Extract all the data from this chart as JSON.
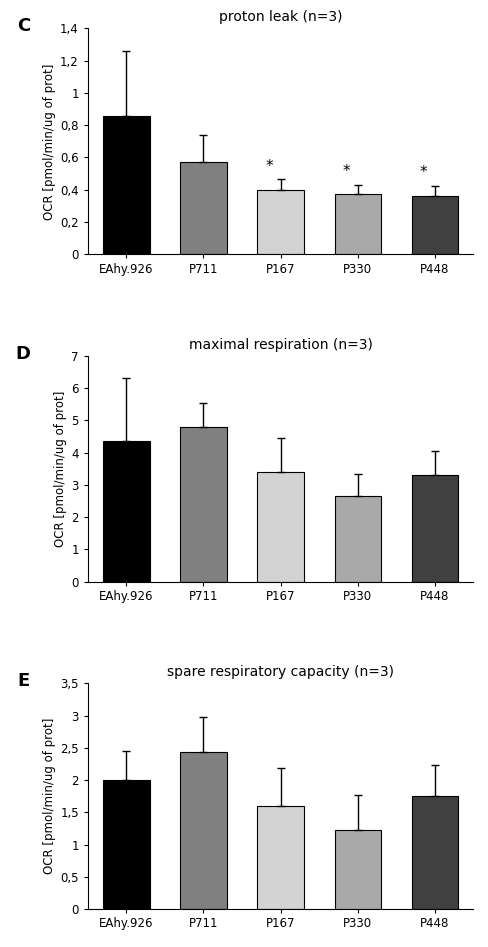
{
  "panels": [
    {
      "label": "C",
      "title": "proton leak (n=3)",
      "categories": [
        "EAhy.926",
        "P711",
        "P167",
        "P330",
        "P448"
      ],
      "values": [
        0.86,
        0.57,
        0.4,
        0.375,
        0.36
      ],
      "errors": [
        0.4,
        0.17,
        0.065,
        0.055,
        0.065
      ],
      "colors": [
        "#000000",
        "#808080",
        "#d3d3d3",
        "#a9a9a9",
        "#404040"
      ],
      "ylim": [
        0,
        1.4
      ],
      "yticks": [
        0,
        0.2,
        0.4,
        0.6,
        0.8,
        1.0,
        1.2,
        1.4
      ],
      "yticklabels": [
        "0",
        "0,2",
        "0,4",
        "0,6",
        "0,8",
        "1",
        "1,2",
        "1,4"
      ],
      "significance": [
        false,
        false,
        true,
        true,
        true
      ],
      "ylabel": "OCR [pmol/min/ug of prot]"
    },
    {
      "label": "D",
      "title": "maximal respiration (n=3)",
      "categories": [
        "EAhy.926",
        "P711",
        "P167",
        "P330",
        "P448"
      ],
      "values": [
        4.35,
        4.8,
        3.4,
        2.65,
        3.3
      ],
      "errors": [
        1.95,
        0.75,
        1.05,
        0.7,
        0.75
      ],
      "colors": [
        "#000000",
        "#808080",
        "#d3d3d3",
        "#a9a9a9",
        "#404040"
      ],
      "ylim": [
        0,
        7
      ],
      "yticks": [
        0,
        1,
        2,
        3,
        4,
        5,
        6,
        7
      ],
      "yticklabels": [
        "0",
        "1",
        "2",
        "3",
        "4",
        "5",
        "6",
        "7"
      ],
      "significance": [
        false,
        false,
        false,
        false,
        false
      ],
      "ylabel": "OCR [pmol/min/ug of prot]"
    },
    {
      "label": "E",
      "title": "spare respiratory capacity (n=3)",
      "categories": [
        "EAhy.926",
        "P711",
        "P167",
        "P330",
        "P448"
      ],
      "values": [
        2.0,
        2.43,
        1.6,
        1.22,
        1.75
      ],
      "errors": [
        0.45,
        0.55,
        0.58,
        0.55,
        0.48
      ],
      "colors": [
        "#000000",
        "#808080",
        "#d3d3d3",
        "#a9a9a9",
        "#404040"
      ],
      "ylim": [
        0,
        3.5
      ],
      "yticks": [
        0,
        0.5,
        1.0,
        1.5,
        2.0,
        2.5,
        3.0,
        3.5
      ],
      "yticklabels": [
        "0",
        "0,5",
        "1",
        "1,5",
        "2",
        "2,5",
        "3",
        "3,5"
      ],
      "significance": [
        false,
        false,
        false,
        false,
        false
      ],
      "ylabel": "OCR [pmol/min/ug of prot]"
    }
  ],
  "background_color": "#ffffff",
  "bar_edge_color": "#000000",
  "bar_linewidth": 0.8,
  "error_capsize": 3,
  "error_linewidth": 1.0,
  "tick_fontsize": 8.5,
  "label_fontsize": 8.5,
  "title_fontsize": 10,
  "panel_label_fontsize": 13,
  "star_color": "#000000"
}
